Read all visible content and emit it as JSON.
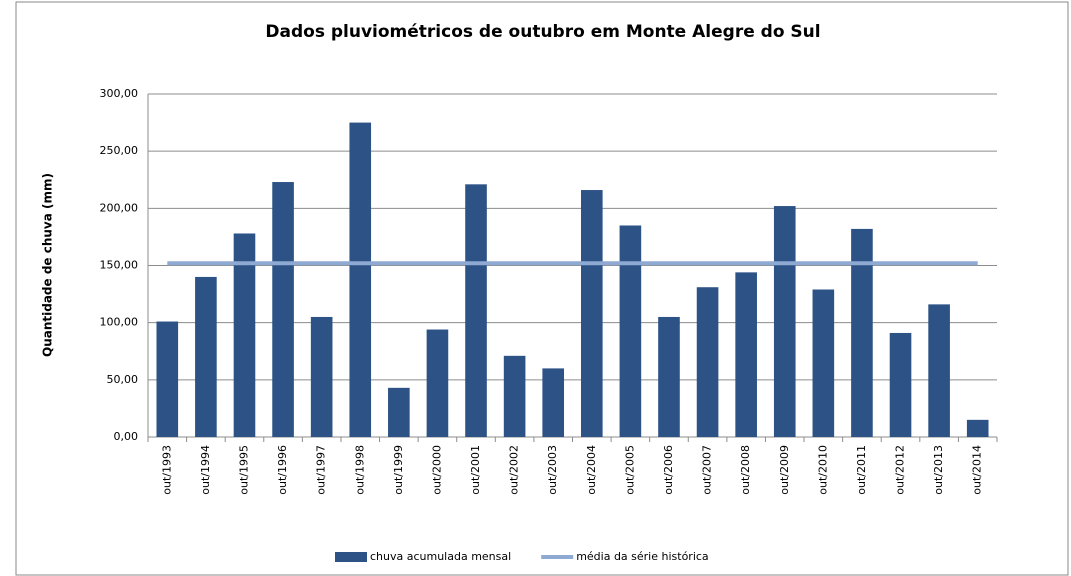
{
  "chart_data": {
    "type": "bar",
    "title": "Dados pluviométricos de outubro em Monte Alegre do Sul",
    "y_label": "Quantidade de chuva (mm)",
    "categories": [
      "out/1993",
      "out/1994",
      "out/1995",
      "out/1996",
      "out/1997",
      "out/1998",
      "out/1999",
      "out/2000",
      "out/2001",
      "out/2002",
      "out/2003",
      "out/2004",
      "out/2005",
      "out/2006",
      "out/2007",
      "out/2008",
      "out/2009",
      "out/2010",
      "out/2011",
      "out/2012",
      "out/2013",
      "out/2014"
    ],
    "series": [
      {
        "name": "chuva acumulada mensal",
        "type": "bar",
        "color": "#2c5286",
        "values": [
          101,
          140,
          178,
          223,
          105,
          275,
          43,
          94,
          221,
          71,
          60,
          216,
          185,
          105,
          131,
          144,
          202,
          129,
          182,
          91,
          116,
          15
        ]
      },
      {
        "name": "média da série histórica",
        "type": "line",
        "color": "#8faad2",
        "values": [
          152,
          152,
          152,
          152,
          152,
          152,
          152,
          152,
          152,
          152,
          152,
          152,
          152,
          152,
          152,
          152,
          152,
          152,
          152,
          152,
          152,
          152
        ]
      }
    ],
    "ylim": [
      0,
      300
    ],
    "yticks": [
      {
        "value": 0,
        "label": "0,00"
      },
      {
        "value": 50,
        "label": "50,00"
      },
      {
        "value": 100,
        "label": "100,00"
      },
      {
        "value": 150,
        "label": "150,00"
      },
      {
        "value": 200,
        "label": "200,00"
      },
      {
        "value": 250,
        "label": "250,00"
      },
      {
        "value": 300,
        "label": "300,00"
      }
    ],
    "grid": true,
    "legend": "bottom"
  }
}
